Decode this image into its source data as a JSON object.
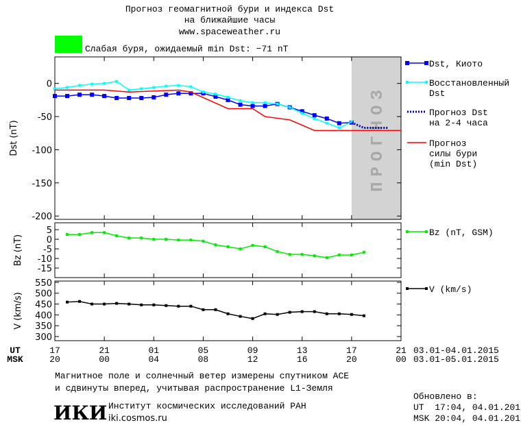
{
  "header": {
    "title": "Прогноз геомагнитной бури и индекса Dst\nна ближайшие часы",
    "url": "www.spaceweather.ru",
    "status": "Слабая буря, ожидаемый min Dst: −71 nT",
    "status_color": "#00ff00"
  },
  "chart_data": [
    {
      "type": "line",
      "ylabel": "Dst (nT)",
      "ylim": [
        -205,
        40
      ],
      "yticks": [
        -200,
        -150,
        -100,
        -50,
        0
      ],
      "xlim": [
        0,
        28
      ],
      "forecast_region": {
        "label": "ПРОГНОЗ",
        "xlim": [
          24,
          28
        ],
        "color": "#d3d3d3"
      },
      "series": [
        {
          "name": "Dst, Киото",
          "color": "#0000ff",
          "style": "markers",
          "x": [
            0,
            1,
            2,
            3,
            4,
            5,
            6,
            7,
            8,
            9,
            10,
            11,
            12,
            13,
            14,
            15,
            16,
            17,
            18,
            19,
            20,
            21,
            22,
            23,
            24
          ],
          "values": [
            -19,
            -19,
            -17,
            -17,
            -19,
            -22,
            -22,
            -22,
            -21,
            -17,
            -15,
            -15,
            -15,
            -20,
            -25,
            -32,
            -34,
            -34,
            -31,
            -36,
            -42,
            -48,
            -53,
            -60,
            -59
          ]
        },
        {
          "name": "Восстановленный\nDst",
          "color": "#00ffff",
          "style": "small-markers",
          "x": [
            0,
            1,
            2,
            3,
            4,
            5,
            6,
            7,
            8,
            9,
            10,
            11,
            12,
            13,
            14,
            15,
            16,
            17,
            18,
            19,
            20,
            21,
            22,
            23,
            24
          ],
          "values": [
            -8,
            -6,
            -3,
            -1,
            0,
            3,
            -10,
            -8,
            -6,
            -4,
            -3,
            -5,
            -13,
            -16,
            -21,
            -26,
            -29,
            -29,
            -31,
            -36,
            -45,
            -53,
            -60,
            -67,
            -58
          ]
        },
        {
          "name": "Прогноз Dst\nна 2-4 часа",
          "color": "#0000c0",
          "style": "dotted",
          "x": [
            24,
            25,
            26,
            27
          ],
          "values": [
            -59,
            -67,
            -67,
            -67
          ]
        },
        {
          "name": "Прогноз\nсилы бури\n(min Dst)",
          "color": "#ff0000",
          "style": "line",
          "x": [
            0,
            4,
            6,
            10,
            11,
            14,
            16,
            17,
            19,
            21,
            28
          ],
          "values": [
            -10,
            -10,
            -13,
            -10,
            -13,
            -38,
            -38,
            -50,
            -55,
            -71,
            -71
          ]
        }
      ]
    },
    {
      "type": "line",
      "ylabel": "Bz (nT)",
      "ylim": [
        -20,
        8.6
      ],
      "yticks": [
        -15,
        -10,
        -5,
        0,
        5
      ],
      "xlim": [
        0,
        28
      ],
      "series": [
        {
          "name": "Bz (nT, GSM)",
          "color": "#00ee00",
          "style": "small-markers",
          "x": [
            1,
            2,
            3,
            4,
            5,
            6,
            7,
            8,
            9,
            10,
            11,
            12,
            13,
            14,
            15,
            16,
            17,
            18,
            19,
            20,
            21,
            22,
            23,
            24,
            25
          ],
          "values": [
            2.5,
            2.5,
            3.5,
            3.5,
            1.8,
            0.7,
            0.7,
            0,
            0,
            -0.4,
            -0.4,
            -1,
            -2.9,
            -3.9,
            -5,
            -3.2,
            -3.9,
            -6.4,
            -7.9,
            -7.9,
            -8.6,
            -9.6,
            -8.2,
            -8.2,
            -6.8
          ]
        }
      ]
    },
    {
      "type": "line",
      "ylabel": "V (km/s)",
      "ylim": [
        281,
        556
      ],
      "yticks": [
        300,
        350,
        400,
        450,
        500,
        550
      ],
      "xlim": [
        0,
        28
      ],
      "xticks": [
        {
          "value": 0,
          "label": "17"
        },
        {
          "value": 4,
          "label": "21"
        },
        {
          "value": 8,
          "label": "01"
        },
        {
          "value": 12,
          "label": "05"
        },
        {
          "value": 16,
          "label": "09"
        },
        {
          "value": 20,
          "label": "13"
        },
        {
          "value": 24,
          "label": "17"
        },
        {
          "value": 28,
          "label": "21"
        }
      ],
      "xticks_msk": [
        {
          "value": 0,
          "label": "20"
        },
        {
          "value": 4,
          "label": "00"
        },
        {
          "value": 8,
          "label": "04"
        },
        {
          "value": 12,
          "label": "08"
        },
        {
          "value": 16,
          "label": "12"
        },
        {
          "value": 20,
          "label": "16"
        },
        {
          "value": 24,
          "label": "20"
        },
        {
          "value": 28,
          "label": "00"
        }
      ],
      "xlabel_ut": "UT",
      "xlabel_msk": "MSK",
      "dates_ut": "03.01-04.01.2015",
      "dates_msk": "03.01-05.01.2015",
      "series": [
        {
          "name": "V (km/s)",
          "color": "#000000",
          "style": "small-markers",
          "x": [
            1,
            2,
            3,
            4,
            5,
            6,
            7,
            8,
            9,
            10,
            11,
            12,
            13,
            14,
            15,
            16,
            17,
            18,
            19,
            20,
            21,
            22,
            23,
            24,
            25
          ],
          "values": [
            459,
            462,
            450,
            450,
            453,
            450,
            446,
            446,
            443,
            440,
            440,
            424,
            424,
            405,
            393,
            383,
            405,
            402,
            412,
            415,
            415,
            405,
            405,
            402,
            396
          ]
        }
      ]
    }
  ],
  "footer": {
    "note": "Магнитное поле и солнечный ветер измерены спутником ACE\nи сдвинуты вперед, учитывая распространение L1-Земля",
    "logo": "ИКИ",
    "institute": "Институт космических исследований РАН",
    "site": "iki.cosmos.ru",
    "updated": "Обновлено в:",
    "updated_ut": "UT  17:04, 04.01.2015",
    "updated_msk": "MSK 20:04, 04.01.2015"
  }
}
